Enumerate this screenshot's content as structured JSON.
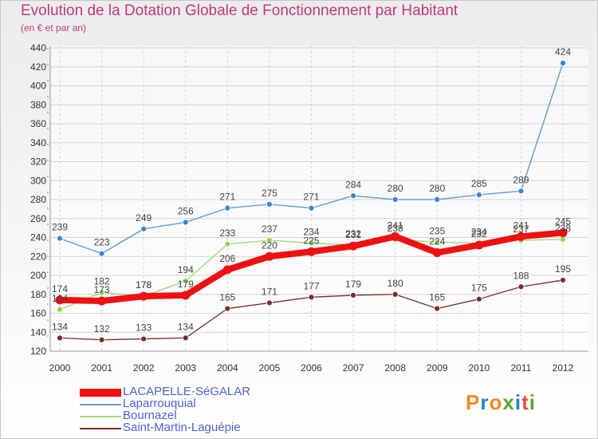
{
  "title": "Evolution de la Dotation Globale de Fonctionnement par Habitant",
  "subtitle": "(en € et par an)",
  "logo": {
    "text": "Proxiti",
    "colors": [
      "#f08a24",
      "#2d7fc1",
      "#f08a24",
      "#5aa832",
      "#2d7fc1",
      "#e74c3c",
      "#5aa832"
    ]
  },
  "chart_data": {
    "type": "line",
    "x": [
      2000,
      2001,
      2002,
      2003,
      2004,
      2005,
      2006,
      2007,
      2008,
      2009,
      2010,
      2011,
      2012
    ],
    "ylim": [
      120,
      440
    ],
    "yticks": [
      120,
      140,
      160,
      180,
      200,
      220,
      240,
      260,
      280,
      300,
      320,
      340,
      360,
      380,
      400,
      420,
      440
    ],
    "grid": true,
    "legend_position": "bottom-left",
    "series": [
      {
        "name": "Laparrouquial",
        "color": "#6a9fcf",
        "marker": "#3a86c8",
        "width": 1.5,
        "values": [
          239,
          223,
          249,
          256,
          271,
          275,
          271,
          284,
          280,
          280,
          285,
          289,
          424
        ]
      },
      {
        "name": "Bournazel",
        "color": "#9ee07a",
        "marker": "#8ed654",
        "width": 1.5,
        "values": [
          164,
          182,
          178,
          194,
          233,
          237,
          234,
          232,
          238,
          235,
          234,
          237,
          238
        ]
      },
      {
        "name": "Saint-Martin-Laguépie",
        "color": "#7a2a2a",
        "marker": "#7a2a2a",
        "width": 1.3,
        "values": [
          134,
          132,
          133,
          134,
          165,
          171,
          177,
          179,
          180,
          165,
          175,
          188,
          195
        ]
      },
      {
        "name": "LACAPELLE-SéGALAR",
        "color": "#ee1111",
        "marker": "#ee1111",
        "width": 8,
        "values": [
          174,
          173,
          178,
          179,
          206,
          220,
          225,
          231,
          241,
          224,
          232,
          241,
          245
        ]
      }
    ],
    "legend": [
      "LACAPELLE-SéGALAR",
      "Laparrouquial",
      "Bournazel",
      "Saint-Martin-Laguépie"
    ]
  }
}
